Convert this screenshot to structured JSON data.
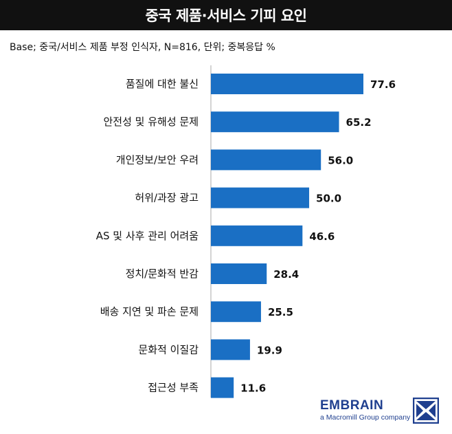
{
  "title": "중국 제품·서비스 기피 요인",
  "base_note": "Base; 중국/서비스 제품 부정 인식자, N=816, 단위; 중복응답 %",
  "chart_data": {
    "type": "bar",
    "orientation": "horizontal",
    "categories": [
      "품질에 대한 불신",
      "안전성 및 유해성 문제",
      "개인정보/보안 우려",
      "허위/과장 광고",
      "AS 및 사후 관리 어려움",
      "정치/문화적 반감",
      "배송 지연 및 파손 문제",
      "문화적 이질감",
      "접근성 부족"
    ],
    "values": [
      77.6,
      65.2,
      56.0,
      50.0,
      46.6,
      28.4,
      25.5,
      19.9,
      11.6
    ],
    "value_labels": [
      "77.6",
      "65.2",
      "56.0",
      "50.0",
      "46.6",
      "28.4",
      "25.5",
      "19.9",
      "11.6"
    ],
    "xlim": [
      0,
      100
    ],
    "bar_color": "#1a6fc4",
    "axis_color": "#aaaaaa",
    "grid": false
  },
  "logo": {
    "name": "EMBRAIN",
    "tagline": "a Macromill Group company",
    "color": "#1f3f8f"
  }
}
